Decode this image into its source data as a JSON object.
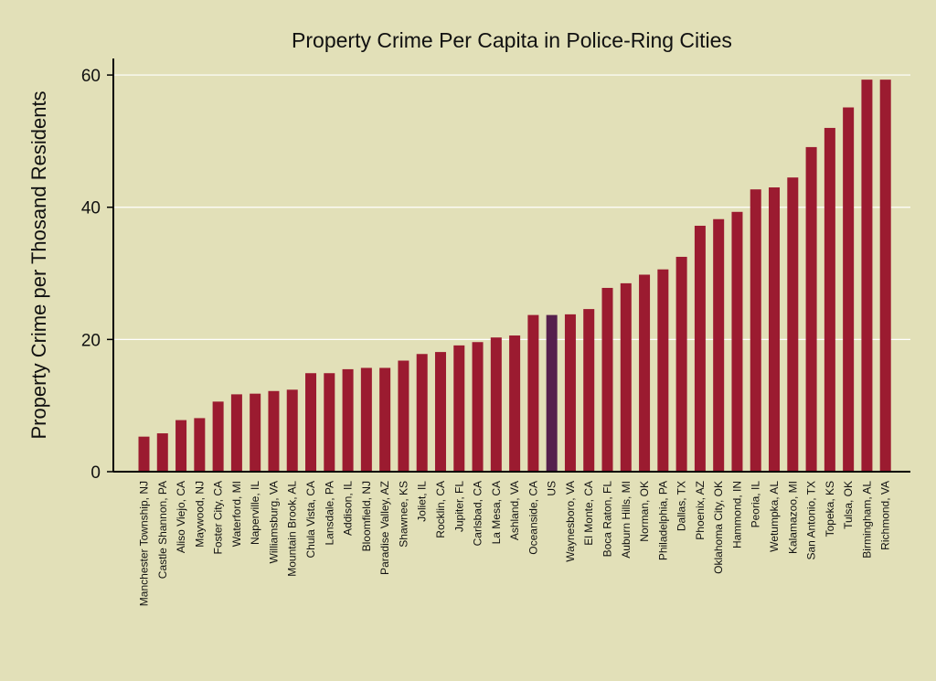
{
  "chart_data": {
    "type": "bar",
    "title": "Property Crime Per Capita in Police-Ring Cities",
    "xlabel": "",
    "ylabel": "Property Crime per Thosand Residents",
    "ylim": [
      0,
      62.5
    ],
    "yticks": [
      0,
      20,
      40,
      60
    ],
    "grid": true,
    "categories": [
      "Manchester Township, NJ",
      "Castle Shannon, PA",
      "Aliso Viejo, CA",
      "Maywood, NJ",
      "Foster City, CA",
      "Waterford, MI",
      "Naperville, IL",
      "Williamsburg, VA",
      "Mountain Brook, AL",
      "Chula Vista, CA",
      "Lansdale, PA",
      "Addison, IL",
      "Bloomfield, NJ",
      "Paradise Valley, AZ",
      "Shawnee, KS",
      "Joliet, IL",
      "Rocklin, CA",
      "Jupiter, FL",
      "Carlsbad, CA",
      "La Mesa, CA",
      "Ashland, VA",
      "Oceanside, CA",
      "US",
      "Waynesboro, VA",
      "El Monte, CA",
      "Boca Raton, FL",
      "Auburn Hills, MI",
      "Norman, OK",
      "Philadelphia, PA",
      "Dallas, TX",
      "Phoenix, AZ",
      "Oklahoma City, OK",
      "Hammond, IN",
      "Peoria, IL",
      "Wetumpka, AL",
      "Kalamazoo, MI",
      "San Antonio, TX",
      "Topeka, KS",
      "Tulsa, OK",
      "Birmingham, AL",
      "Richmond, VA"
    ],
    "values": [
      5.3,
      5.8,
      7.8,
      8.1,
      10.6,
      11.7,
      11.8,
      12.2,
      12.4,
      14.9,
      14.9,
      15.5,
      15.7,
      15.7,
      16.8,
      17.8,
      18.1,
      19.1,
      19.6,
      20.3,
      20.6,
      23.7,
      23.7,
      23.8,
      24.6,
      27.8,
      28.5,
      29.8,
      30.6,
      32.5,
      37.2,
      38.2,
      39.3,
      42.7,
      43.0,
      44.5,
      49.1,
      52.0,
      55.1,
      59.3,
      59.3
    ],
    "bar_color": "#9b1b30",
    "highlight": {
      "category": "US",
      "color": "#55204d"
    },
    "colors": {
      "background": "#e2e0b8",
      "grid": "#ffffff",
      "axis": "#000000"
    }
  }
}
